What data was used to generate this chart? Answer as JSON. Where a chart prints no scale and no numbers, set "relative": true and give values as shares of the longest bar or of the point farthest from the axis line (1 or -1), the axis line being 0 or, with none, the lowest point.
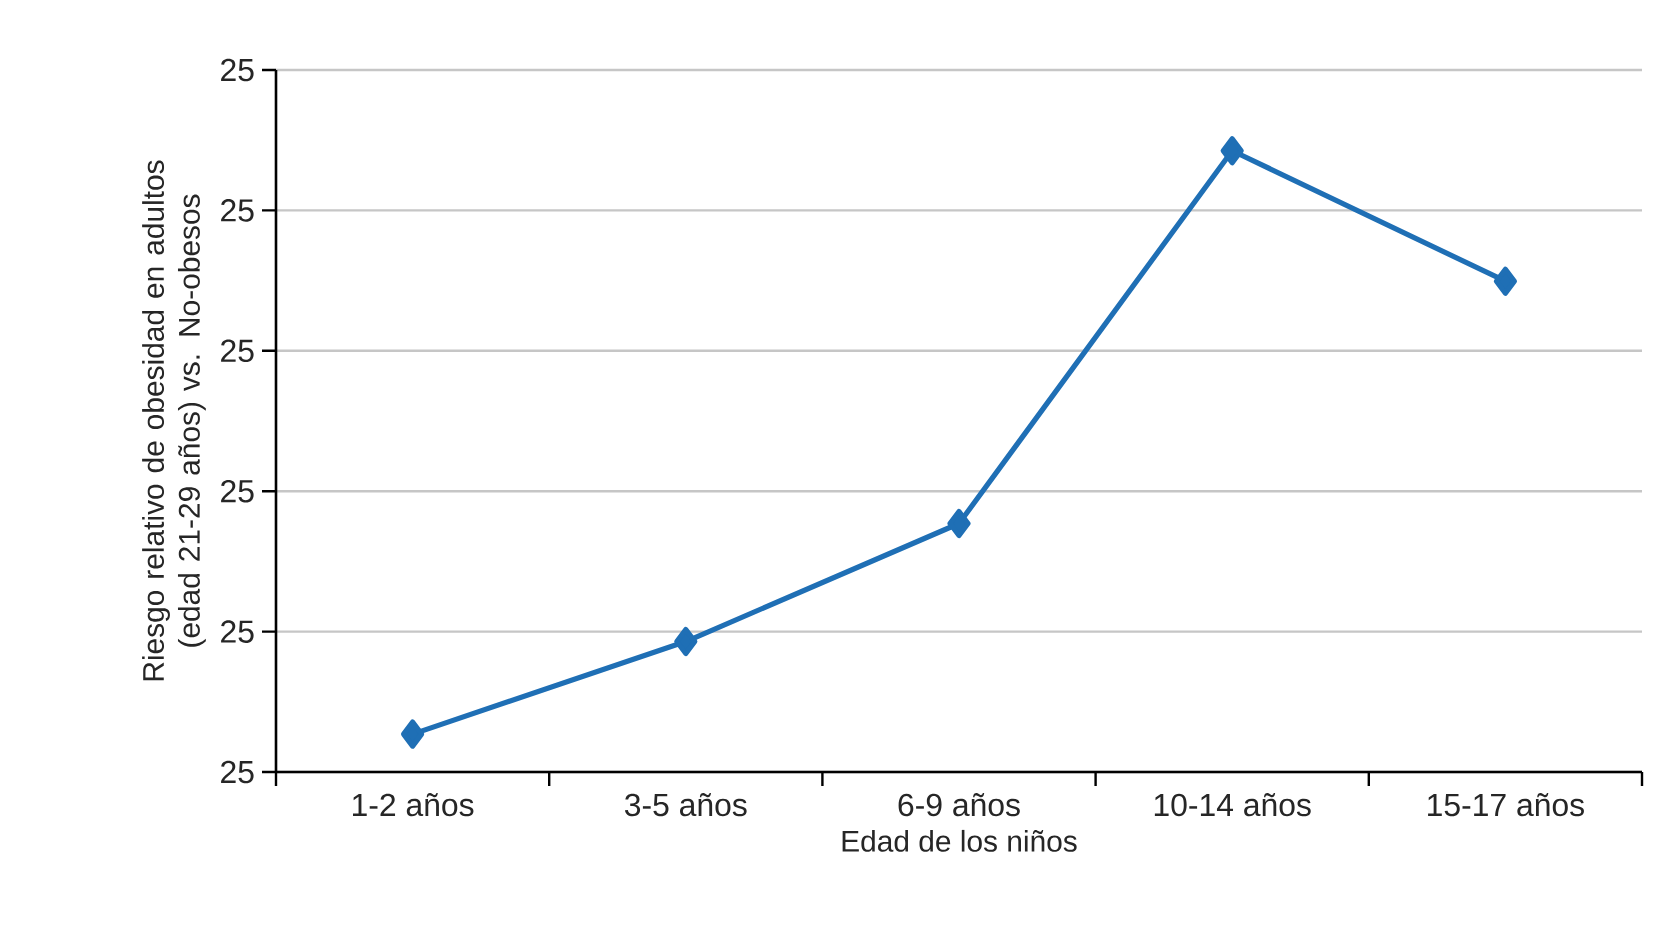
{
  "chart_data": {
    "type": "line",
    "xlabel": "Edad de los niños",
    "ylabel": "Riesgo relativo de obesidad en adultos (edad 21-29 años) vs. No-obesos",
    "categories": [
      "1-2 años",
      "3-5 años",
      "6-9 años",
      "10-14 años",
      "15-17 años"
    ],
    "series": [
      {
        "color": "#1f6fb5",
        "values": [
          0.061,
          0.21,
          0.4,
          1,
          0.79
        ]
      }
    ],
    "relative": true,
    "annotations": [
      "25",
      "25",
      "25",
      "25",
      "25",
      "25"
    ],
    "grid": "y",
    "marker": "diamond",
    "line_style": "solid"
  }
}
